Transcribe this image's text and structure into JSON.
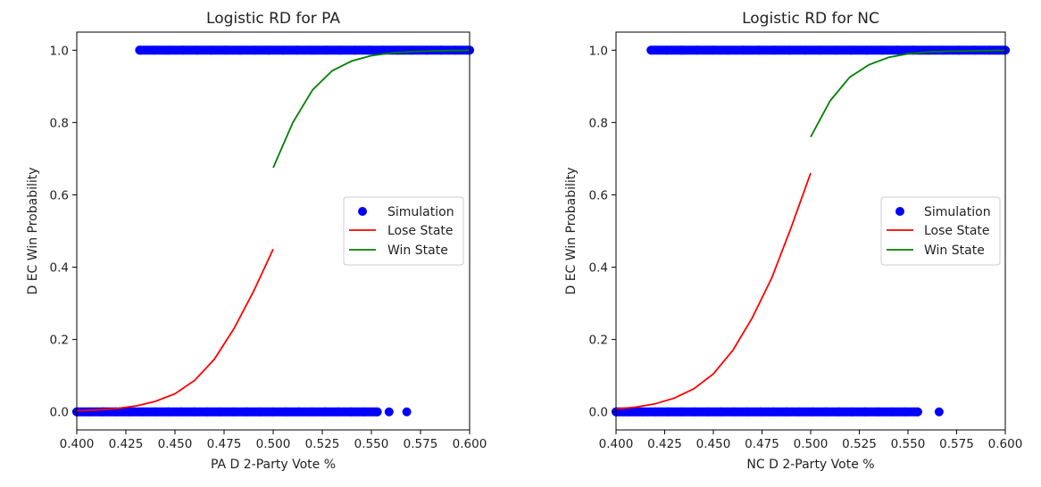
{
  "chart_data": [
    {
      "type": "scatter",
      "title": "Logistic RD for PA",
      "xlabel": "PA D 2-Party Vote %",
      "ylabel": "D EC Win Probability",
      "xlim": [
        0.4,
        0.6
      ],
      "ylim": [
        -0.05,
        1.05
      ],
      "xticks": [
        "0.400",
        "0.425",
        "0.450",
        "0.475",
        "0.500",
        "0.525",
        "0.550",
        "0.575",
        "0.600"
      ],
      "yticks": [
        "0.0",
        "0.2",
        "0.4",
        "0.6",
        "0.8",
        "1.0"
      ],
      "legend": [
        "Simulation",
        "Lose State",
        "Win State"
      ],
      "legend_position": "center-right",
      "series": [
        {
          "name": "Simulation",
          "kind": "scatter",
          "color": "#0000ff",
          "groups": [
            {
              "y": 0,
              "x_range": [
                0.4,
                0.553
              ],
              "outliers_x": [
                0.559,
                0.568
              ]
            },
            {
              "y": 1,
              "x_range": [
                0.432,
                0.6
              ],
              "outliers_x": []
            }
          ]
        },
        {
          "name": "Lose State",
          "kind": "line",
          "color": "#ff0000",
          "x": [
            0.4,
            0.41,
            0.42,
            0.43,
            0.44,
            0.45,
            0.46,
            0.47,
            0.48,
            0.49,
            0.5
          ],
          "y": [
            0.003,
            0.005,
            0.009,
            0.016,
            0.029,
            0.05,
            0.087,
            0.145,
            0.23,
            0.333,
            0.45
          ]
        },
        {
          "name": "Win State",
          "kind": "line",
          "color": "#008000",
          "x": [
            0.5,
            0.51,
            0.52,
            0.53,
            0.54,
            0.55,
            0.56,
            0.57,
            0.58,
            0.59,
            0.6
          ],
          "y": [
            0.675,
            0.8,
            0.89,
            0.943,
            0.97,
            0.985,
            0.992,
            0.996,
            0.998,
            0.999,
            0.9995
          ]
        }
      ]
    },
    {
      "type": "scatter",
      "title": "Logistic RD for NC",
      "xlabel": "NC D 2-Party Vote %",
      "ylabel": "D EC Win Probability",
      "xlim": [
        0.4,
        0.6
      ],
      "ylim": [
        -0.05,
        1.05
      ],
      "xticks": [
        "0.400",
        "0.425",
        "0.450",
        "0.475",
        "0.500",
        "0.525",
        "0.550",
        "0.575",
        "0.600"
      ],
      "yticks": [
        "0.0",
        "0.2",
        "0.4",
        "0.6",
        "0.8",
        "1.0"
      ],
      "legend": [
        "Simulation",
        "Lose State",
        "Win State"
      ],
      "legend_position": "center-right",
      "series": [
        {
          "name": "Simulation",
          "kind": "scatter",
          "color": "#0000ff",
          "groups": [
            {
              "y": 0,
              "x_range": [
                0.4,
                0.555
              ],
              "outliers_x": [
                0.566
              ]
            },
            {
              "y": 1,
              "x_range": [
                0.418,
                0.6
              ],
              "outliers_x": []
            }
          ]
        },
        {
          "name": "Lose State",
          "kind": "line",
          "color": "#ff0000",
          "x": [
            0.4,
            0.41,
            0.42,
            0.43,
            0.44,
            0.45,
            0.46,
            0.47,
            0.48,
            0.49,
            0.5
          ],
          "y": [
            0.008,
            0.013,
            0.022,
            0.038,
            0.064,
            0.105,
            0.17,
            0.26,
            0.37,
            0.51,
            0.66
          ]
        },
        {
          "name": "Win State",
          "kind": "line",
          "color": "#008000",
          "x": [
            0.5,
            0.51,
            0.52,
            0.53,
            0.54,
            0.55,
            0.56,
            0.57,
            0.58,
            0.59,
            0.6
          ],
          "y": [
            0.76,
            0.86,
            0.925,
            0.96,
            0.98,
            0.99,
            0.995,
            0.997,
            0.998,
            0.999,
            0.9995
          ]
        }
      ]
    }
  ]
}
